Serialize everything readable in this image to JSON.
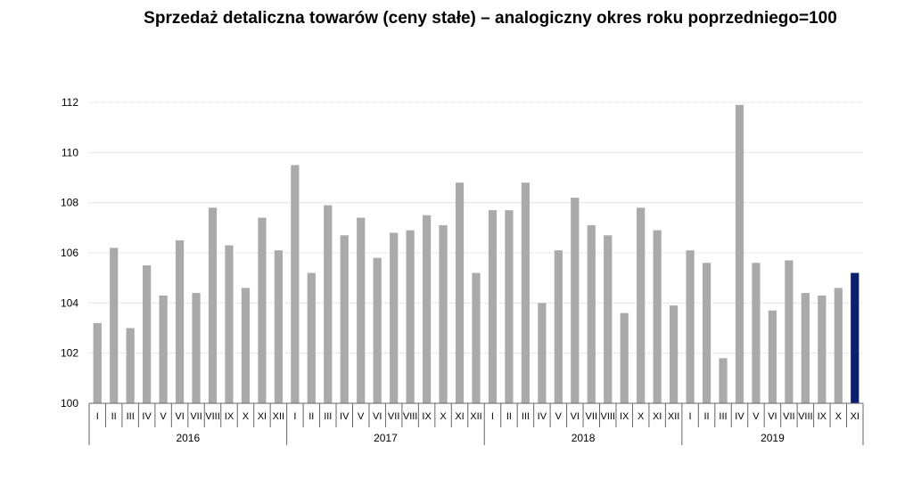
{
  "chart_data": {
    "type": "bar",
    "title": "Sprzedaż detaliczna towarów (ceny stałe) – analogiczny okres roku poprzedniego=100",
    "xlabel": "",
    "ylabel": "",
    "ylim": [
      100,
      112
    ],
    "yticks": [
      "100",
      "102",
      "104",
      "106",
      "108",
      "110",
      "112"
    ],
    "grid": true,
    "legend": "none",
    "years": [
      "2016",
      "2017",
      "2018",
      "2019"
    ],
    "categories": [
      "I",
      "II",
      "III",
      "IV",
      "V",
      "VI",
      "VII",
      "VIII",
      "IX",
      "X",
      "XI",
      "XII",
      "I",
      "II",
      "III",
      "IV",
      "V",
      "VI",
      "VII",
      "VIII",
      "IX",
      "X",
      "XI",
      "XII",
      "I",
      "II",
      "III",
      "IV",
      "V",
      "VI",
      "VII",
      "VIII",
      "IX",
      "X",
      "XI",
      "XII",
      "I",
      "II",
      "III",
      "IV",
      "V",
      "VI",
      "VII",
      "VIII",
      "IX",
      "X",
      "XI"
    ],
    "values": [
      103.2,
      106.2,
      103.0,
      105.5,
      104.3,
      106.5,
      104.4,
      107.8,
      106.3,
      104.6,
      107.4,
      106.1,
      109.5,
      105.2,
      107.9,
      106.7,
      107.4,
      105.8,
      106.8,
      106.9,
      107.5,
      107.1,
      108.8,
      105.2,
      107.7,
      107.7,
      108.8,
      104.0,
      106.1,
      108.2,
      107.1,
      106.7,
      103.6,
      107.8,
      106.9,
      103.9,
      106.1,
      105.6,
      101.8,
      111.9,
      105.6,
      103.7,
      105.7,
      104.4,
      104.3,
      104.6,
      105.2
    ],
    "colors": {
      "bar": "#aaaaaa",
      "highlight": "#0d1f6b",
      "grid": "#d4d4d4",
      "axis": "#666666"
    }
  }
}
